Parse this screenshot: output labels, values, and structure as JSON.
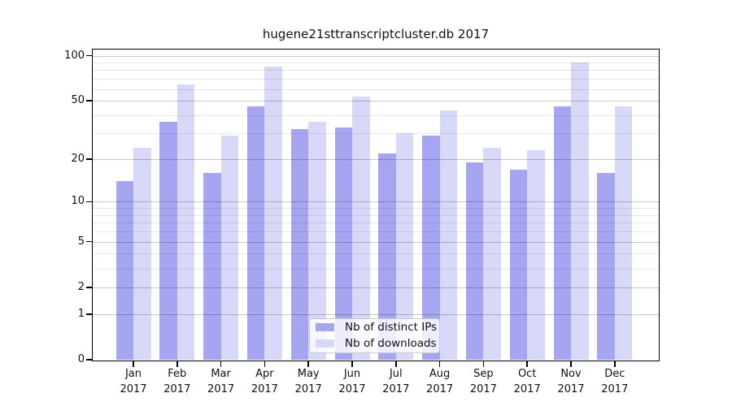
{
  "title": "hugene21sttranscriptcluster.db 2017",
  "chart_data": {
    "type": "bar",
    "title": "hugene21sttranscriptcluster.db 2017",
    "x_categories": [
      "Jan",
      "Feb",
      "Mar",
      "Apr",
      "May",
      "Jun",
      "Jul",
      "Aug",
      "Sep",
      "Oct",
      "Nov",
      "Dec"
    ],
    "x_year_label": "2017",
    "y_scale": "log10(1+count)",
    "y_ticks": [
      0,
      1,
      2,
      5,
      10,
      20,
      50,
      100
    ],
    "y_minor_gridlines": [
      3,
      4,
      6,
      7,
      8,
      9,
      30,
      40,
      60,
      70,
      80,
      90
    ],
    "ylim": [
      0,
      110
    ],
    "grid": true,
    "legend_position": "lower center",
    "series": [
      {
        "name": "Nb of distinct IPs",
        "slug": "distinct-ips",
        "color": "#a5a5f2",
        "values": [
          14,
          36,
          16,
          46,
          32,
          33,
          22,
          29,
          19,
          17,
          46,
          16
        ]
      },
      {
        "name": "Nb of downloads",
        "slug": "downloads",
        "color": "#d8d8f9",
        "values": [
          24,
          64,
          29,
          85,
          36,
          53,
          30,
          43,
          24,
          23,
          90,
          46
        ]
      }
    ]
  }
}
